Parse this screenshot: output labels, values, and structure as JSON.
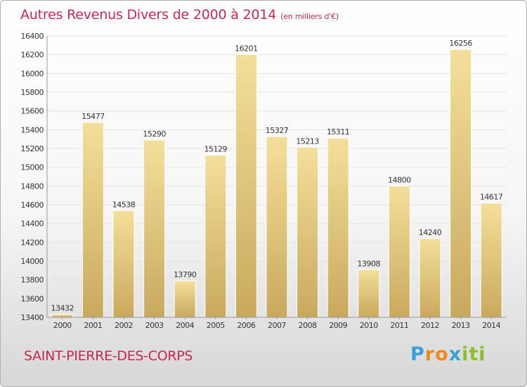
{
  "title": "Autres Revenus Divers de 2000 à 2014",
  "subtitle": "(en milliers d'€)",
  "city": "SAINT-PIERRE-DES-CORPS",
  "logo": {
    "letters": [
      "P",
      "r",
      "o",
      "x",
      "i",
      "t",
      "i"
    ],
    "colors": [
      "#3aa0d8",
      "#f08a1c",
      "#f08a1c",
      "#3aa0d8",
      "#8bbf2a",
      "#8bbf2a",
      "#8bbf2a"
    ]
  },
  "colors": {
    "bar_light": "#f4df9a",
    "bar_dark": "#c9a95e",
    "accent": "#c8284e"
  },
  "chart_data": {
    "type": "bar",
    "categories": [
      "2000",
      "2001",
      "2002",
      "2003",
      "2004",
      "2005",
      "2006",
      "2007",
      "2008",
      "2009",
      "2010",
      "2011",
      "2012",
      "2013",
      "2014"
    ],
    "values": [
      13432,
      15477,
      14538,
      15290,
      13790,
      15129,
      16201,
      15327,
      15213,
      15311,
      13908,
      14800,
      14240,
      16256,
      14617
    ],
    "ylim": [
      13400,
      16400
    ],
    "yticks": [
      13400,
      13600,
      13800,
      14000,
      14200,
      14400,
      14600,
      14800,
      15000,
      15200,
      15400,
      15600,
      15800,
      16000,
      16200,
      16400
    ],
    "grid": true
  }
}
